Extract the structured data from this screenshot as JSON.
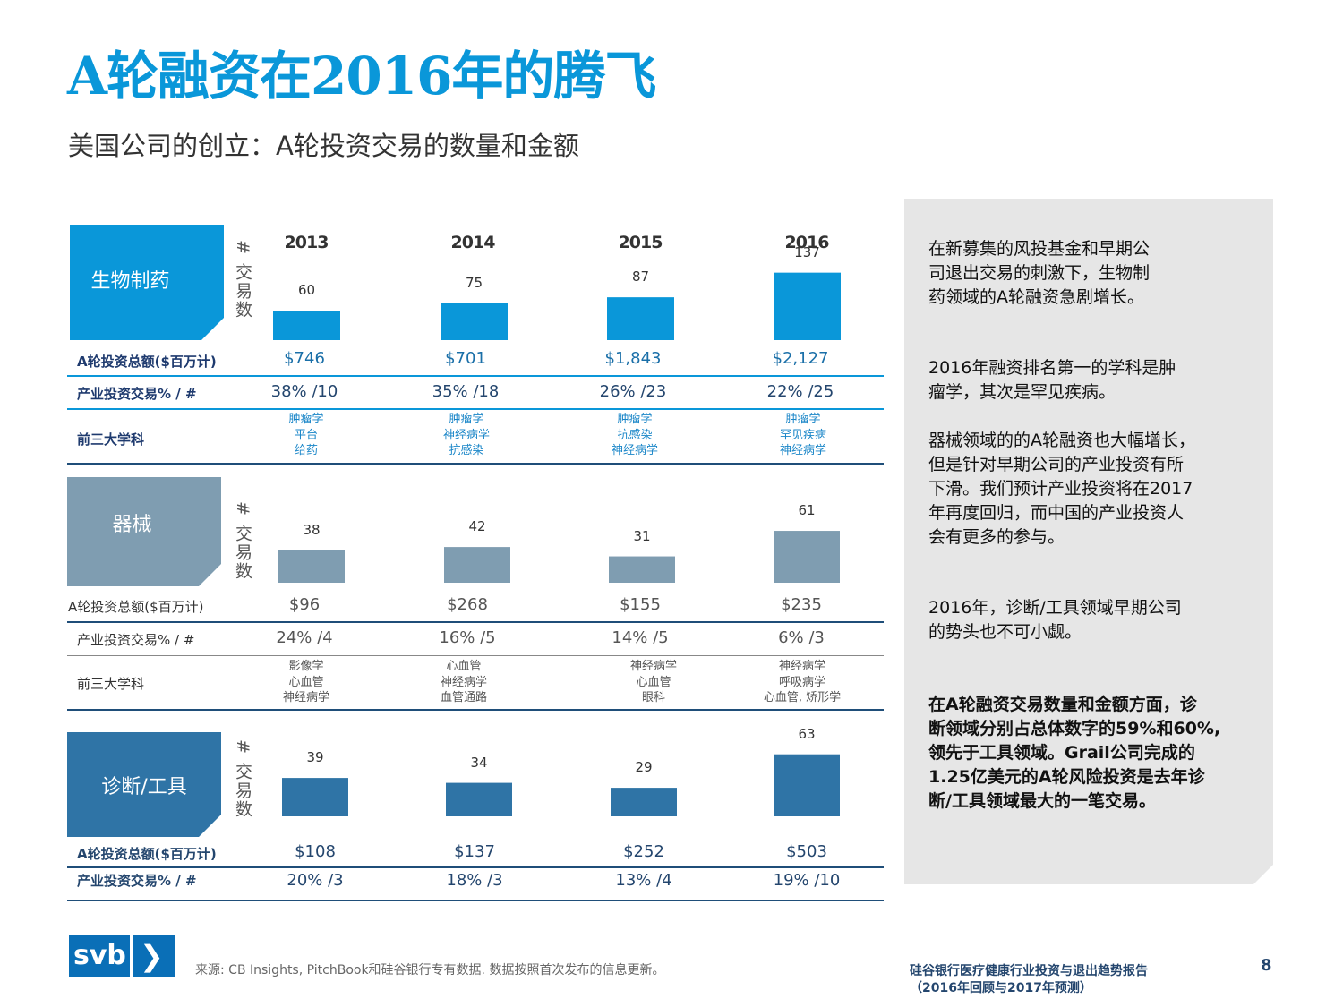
{
  "title": "A轮融资在2016年的腾飞",
  "subtitle": "美国公司的创立：A轮投资交易的数量和金额",
  "axis_label": "# 交易数",
  "years": [
    "2013",
    "2014",
    "2015",
    "2016"
  ],
  "colors": {
    "biopharma": "#0a97d9",
    "device": "#7f9db1",
    "dx": "#2f74a6",
    "title": "#0a97d9"
  },
  "sections": {
    "biopharma": {
      "name": "生物制药",
      "counts": [
        "60",
        "75",
        "87",
        "137"
      ],
      "amount_label": "A轮投资总额($百万计)",
      "amounts": [
        "$746",
        "$701",
        "$1,843",
        "$2,127"
      ],
      "corporate_label": "产业投资交易% / #",
      "corporate": [
        "38% /10",
        "35% /18",
        "26% /23",
        "22% /25"
      ],
      "subjects_label": "前三大学科",
      "subjects": [
        [
          "肿瘤学",
          "平台",
          "给药"
        ],
        [
          "肿瘤学",
          "神经病学",
          "抗感染"
        ],
        [
          "肿瘤学",
          "抗感染",
          "神经病学"
        ],
        [
          "肿瘤学",
          "罕见疾病",
          "神经病学"
        ]
      ]
    },
    "device": {
      "name": "器械",
      "counts": [
        "38",
        "42",
        "31",
        "61"
      ],
      "amount_label": "A轮投资总额($百万计)",
      "amounts": [
        "$96",
        "$268",
        "$155",
        "$235"
      ],
      "corporate_label": "产业投资交易% / #",
      "corporate": [
        "24% /4",
        "16% /5",
        "14% /5",
        "6% /3"
      ],
      "subjects_label": "前三大学科",
      "subjects": [
        [
          "影像学",
          "心血管",
          "神经病学"
        ],
        [
          "心血管",
          "神经病学",
          "血管通路"
        ],
        [
          "神经病学",
          "心血管",
          "眼科"
        ],
        [
          "神经病学",
          "呼吸病学",
          "心血管, 矫形学"
        ]
      ]
    },
    "dx": {
      "name": "诊断/工具",
      "counts": [
        "39",
        "34",
        "29",
        "63"
      ],
      "amount_label": "A轮投资总额($百万计)",
      "amounts": [
        "$108",
        "$137",
        "$252",
        "$503"
      ],
      "corporate_label": "产业投资交易% / #",
      "corporate": [
        "20% /3",
        "18% /3",
        "13% /4",
        "19% /10"
      ]
    }
  },
  "chart_data": [
    {
      "type": "bar",
      "title": "生物制药",
      "categories": [
        "2013",
        "2014",
        "2015",
        "2016"
      ],
      "values": [
        60,
        75,
        87,
        137
      ],
      "ylabel": "# 交易数"
    },
    {
      "type": "bar",
      "title": "器械",
      "categories": [
        "2013",
        "2014",
        "2015",
        "2016"
      ],
      "values": [
        38,
        42,
        31,
        61
      ],
      "ylabel": "# 交易数"
    },
    {
      "type": "bar",
      "title": "诊断/工具",
      "categories": [
        "2013",
        "2014",
        "2015",
        "2016"
      ],
      "values": [
        39,
        34,
        29,
        63
      ],
      "ylabel": "# 交易数"
    }
  ],
  "side": {
    "p1": [
      "在新募集的风投基金和早期公",
      "司退出交易的刺激下，生物制",
      "药领域的A轮融资急剧增长。"
    ],
    "p2": [
      "2016年融资排名第一的学科是肿",
      "瘤学，其次是罕见疾病。"
    ],
    "p3": [
      "器械领域的的A轮融资也大幅增长，",
      "但是针对早期公司的产业投资有所",
      "下滑。我们预计产业投资将在2017",
      "年再度回归，而中国的产业投资人",
      "会有更多的参与。"
    ],
    "p4": [
      "2016年，诊断/工具领域早期公司",
      "的势头也不可小觑。"
    ],
    "p5": [
      "在A轮融资交易数量和金额方面，诊",
      "断领域分别占总体数字的59%和60%,",
      "领先于工具领域。Grail公司完成的",
      "1.25亿美元的A轮风险投资是去年诊",
      "断/工具领域最大的一笔交易。"
    ]
  },
  "footer": {
    "logo": "svb",
    "logo_chevron": "❯",
    "source": "来源: CB Insights, PitchBook和硅谷银行专有数据. 数据按照首次发布的信息更新。",
    "report_title": "硅谷银行医疗健康行业投资与退出趋势报告",
    "report_sub": "（2016年回顾与2017年预测）",
    "page": "8"
  }
}
